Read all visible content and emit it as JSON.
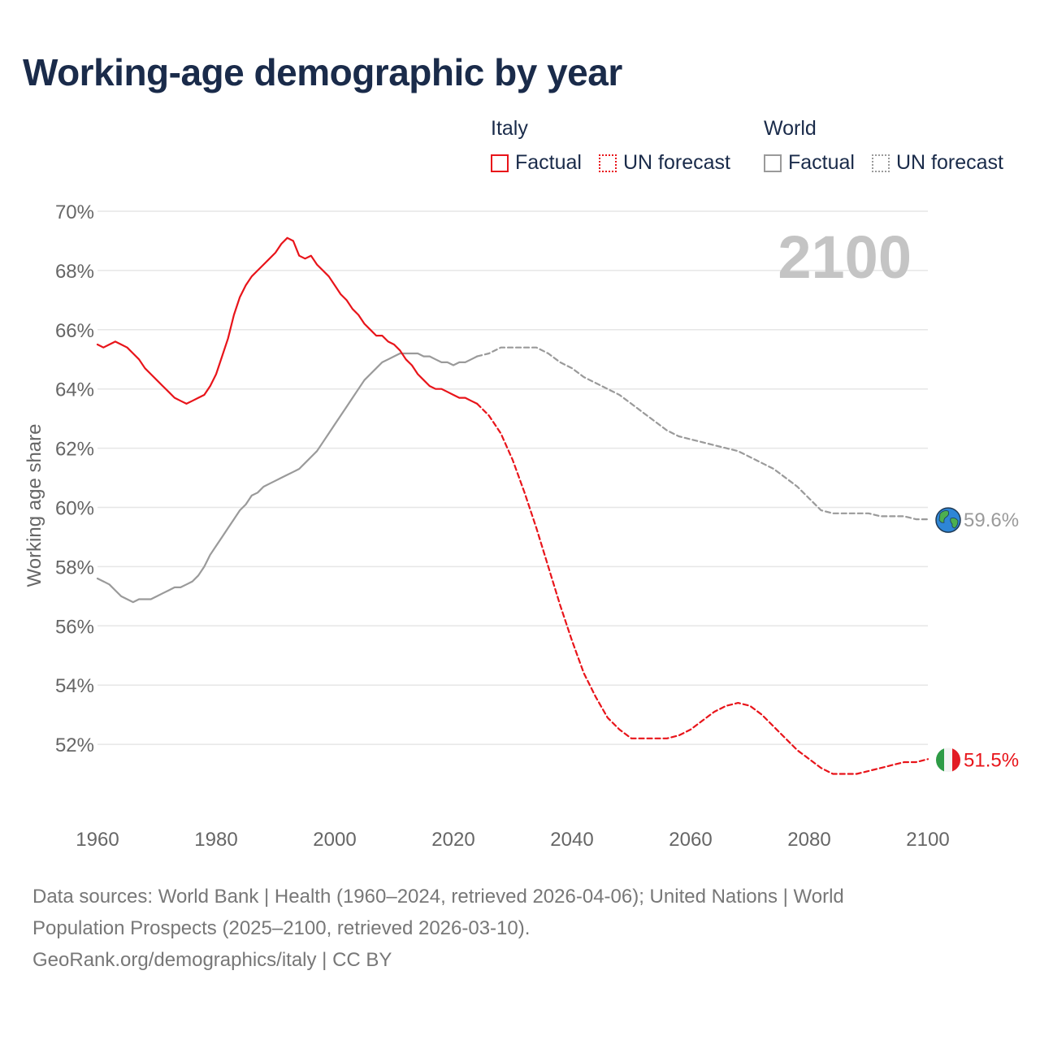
{
  "title": "Working-age demographic by year",
  "legend": {
    "groups": [
      {
        "name": "Italy",
        "color": "#e8141a",
        "items": [
          {
            "label": "Factual",
            "style": "solid"
          },
          {
            "label": "UN forecast",
            "style": "dotted"
          }
        ]
      },
      {
        "name": "World",
        "color": "#9a9a9a",
        "items": [
          {
            "label": "Factual",
            "style": "solid"
          },
          {
            "label": "UN forecast",
            "style": "dotted"
          }
        ]
      }
    ]
  },
  "year_label": "2100",
  "footer": {
    "line1": "Data sources: World Bank | Health (1960–2024, retrieved 2026-04-06); United Nations | World",
    "line2": "Population Prospects (2025–2100, retrieved 2026-03-10).",
    "line3": "GeoRank.org/demographics/italy | CC BY"
  },
  "chart_data": {
    "type": "line",
    "title": "Working-age demographic by year",
    "xlabel": "",
    "ylabel": "Working age share",
    "xlim": [
      1960,
      2100
    ],
    "ylim": [
      50,
      70
    ],
    "x_ticks": [
      1960,
      1980,
      2000,
      2020,
      2040,
      2060,
      2080,
      2100
    ],
    "y_ticks": [
      52,
      54,
      56,
      58,
      60,
      62,
      64,
      66,
      68,
      70
    ],
    "y_tick_labels": [
      "52%",
      "54%",
      "56%",
      "58%",
      "60%",
      "62%",
      "64%",
      "66%",
      "68%",
      "70%"
    ],
    "grid": true,
    "series": [
      {
        "name": "Italy",
        "segment": "Factual",
        "color": "#e8141a",
        "style": "solid",
        "x": [
          1960,
          1961,
          1962,
          1963,
          1964,
          1965,
          1966,
          1967,
          1968,
          1969,
          1970,
          1971,
          1972,
          1973,
          1974,
          1975,
          1976,
          1977,
          1978,
          1979,
          1980,
          1981,
          1982,
          1983,
          1984,
          1985,
          1986,
          1987,
          1988,
          1989,
          1990,
          1991,
          1992,
          1993,
          1994,
          1995,
          1996,
          1997,
          1998,
          1999,
          2000,
          2001,
          2002,
          2003,
          2004,
          2005,
          2006,
          2007,
          2008,
          2009,
          2010,
          2011,
          2012,
          2013,
          2014,
          2015,
          2016,
          2017,
          2018,
          2019,
          2020,
          2021,
          2022,
          2023,
          2024
        ],
        "values": [
          65.5,
          65.4,
          65.5,
          65.6,
          65.5,
          65.4,
          65.2,
          65.0,
          64.7,
          64.5,
          64.3,
          64.1,
          63.9,
          63.7,
          63.6,
          63.5,
          63.6,
          63.7,
          63.8,
          64.1,
          64.5,
          65.1,
          65.7,
          66.5,
          67.1,
          67.5,
          67.8,
          68.0,
          68.2,
          68.4,
          68.6,
          68.9,
          69.1,
          69.0,
          68.5,
          68.4,
          68.5,
          68.2,
          68.0,
          67.8,
          67.5,
          67.2,
          67.0,
          66.7,
          66.5,
          66.2,
          66.0,
          65.8,
          65.8,
          65.6,
          65.5,
          65.3,
          65.0,
          64.8,
          64.5,
          64.3,
          64.1,
          64.0,
          64.0,
          63.9,
          63.8,
          63.7,
          63.7,
          63.6,
          63.5
        ]
      },
      {
        "name": "Italy",
        "segment": "UN forecast",
        "color": "#e8141a",
        "style": "dashed",
        "x": [
          2024,
          2026,
          2028,
          2030,
          2032,
          2034,
          2036,
          2038,
          2040,
          2042,
          2044,
          2046,
          2048,
          2050,
          2052,
          2054,
          2056,
          2058,
          2060,
          2062,
          2064,
          2066,
          2068,
          2070,
          2072,
          2074,
          2076,
          2078,
          2080,
          2082,
          2084,
          2086,
          2088,
          2090,
          2092,
          2094,
          2096,
          2098,
          2100
        ],
        "values": [
          63.5,
          63.1,
          62.5,
          61.6,
          60.5,
          59.3,
          58.0,
          56.7,
          55.5,
          54.4,
          53.6,
          52.9,
          52.5,
          52.2,
          52.2,
          52.2,
          52.2,
          52.3,
          52.5,
          52.8,
          53.1,
          53.3,
          53.4,
          53.3,
          53.0,
          52.6,
          52.2,
          51.8,
          51.5,
          51.2,
          51.0,
          51.0,
          51.0,
          51.1,
          51.2,
          51.3,
          51.4,
          51.4,
          51.5
        ]
      },
      {
        "name": "World",
        "segment": "Factual",
        "color": "#9a9a9a",
        "style": "solid",
        "x": [
          1960,
          1961,
          1962,
          1963,
          1964,
          1965,
          1966,
          1967,
          1968,
          1969,
          1970,
          1971,
          1972,
          1973,
          1974,
          1975,
          1976,
          1977,
          1978,
          1979,
          1980,
          1981,
          1982,
          1983,
          1984,
          1985,
          1986,
          1987,
          1988,
          1989,
          1990,
          1991,
          1992,
          1993,
          1994,
          1995,
          1996,
          1997,
          1998,
          1999,
          2000,
          2001,
          2002,
          2003,
          2004,
          2005,
          2006,
          2007,
          2008,
          2009,
          2010,
          2011,
          2012,
          2013,
          2014,
          2015,
          2016,
          2017,
          2018,
          2019,
          2020,
          2021,
          2022,
          2023,
          2024
        ],
        "values": [
          57.6,
          57.5,
          57.4,
          57.2,
          57.0,
          56.9,
          56.8,
          56.9,
          56.9,
          56.9,
          57.0,
          57.1,
          57.2,
          57.3,
          57.3,
          57.4,
          57.5,
          57.7,
          58.0,
          58.4,
          58.7,
          59.0,
          59.3,
          59.6,
          59.9,
          60.1,
          60.4,
          60.5,
          60.7,
          60.8,
          60.9,
          61.0,
          61.1,
          61.2,
          61.3,
          61.5,
          61.7,
          61.9,
          62.2,
          62.5,
          62.8,
          63.1,
          63.4,
          63.7,
          64.0,
          64.3,
          64.5,
          64.7,
          64.9,
          65.0,
          65.1,
          65.2,
          65.2,
          65.2,
          65.2,
          65.1,
          65.1,
          65.0,
          64.9,
          64.9,
          64.8,
          64.9,
          64.9,
          65.0,
          65.1
        ]
      },
      {
        "name": "World",
        "segment": "UN forecast",
        "color": "#9a9a9a",
        "style": "dashed",
        "x": [
          2024,
          2026,
          2028,
          2030,
          2032,
          2034,
          2036,
          2038,
          2040,
          2042,
          2044,
          2046,
          2048,
          2050,
          2052,
          2054,
          2056,
          2058,
          2060,
          2062,
          2064,
          2066,
          2068,
          2070,
          2072,
          2074,
          2076,
          2078,
          2080,
          2082,
          2084,
          2086,
          2088,
          2090,
          2092,
          2094,
          2096,
          2098,
          2100
        ],
        "values": [
          65.1,
          65.2,
          65.4,
          65.4,
          65.4,
          65.4,
          65.2,
          64.9,
          64.7,
          64.4,
          64.2,
          64.0,
          63.8,
          63.5,
          63.2,
          62.9,
          62.6,
          62.4,
          62.3,
          62.2,
          62.1,
          62.0,
          61.9,
          61.7,
          61.5,
          61.3,
          61.0,
          60.7,
          60.3,
          59.9,
          59.8,
          59.8,
          59.8,
          59.8,
          59.7,
          59.7,
          59.7,
          59.6,
          59.6
        ]
      }
    ],
    "end_labels": [
      {
        "name": "World",
        "value_label": "59.6%",
        "value": 59.6,
        "color": "#9a9a9a",
        "icon": "globe-icon"
      },
      {
        "name": "Italy",
        "value_label": "51.5%",
        "value": 51.5,
        "color": "#e8141a",
        "icon": "italy-flag-icon"
      }
    ]
  }
}
